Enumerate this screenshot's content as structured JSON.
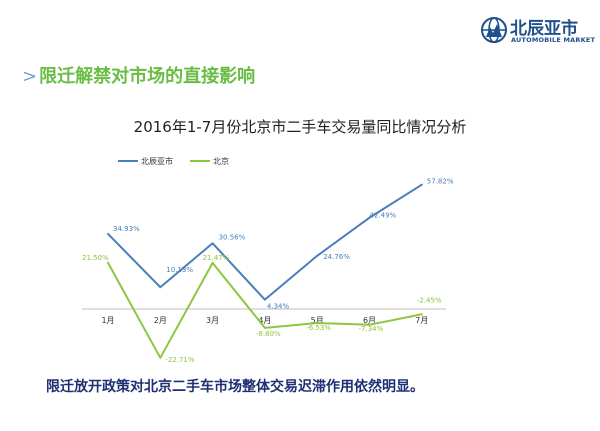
{
  "logo": {
    "name": "北辰亚市",
    "subtitle": "AUTOMOBILE MARKET"
  },
  "heading": {
    "marker": ">",
    "text": "限迁解禁对市场的直接影响"
  },
  "bottom_note": "限迁放开政策对北京二手车市场整体交易迟滞作用依然明显。",
  "colors": {
    "series_1": "#4a7ebb",
    "series_2": "#8dc641",
    "heading": "#69bd45",
    "note": "#1e2f73",
    "logo": "#1f4f8c"
  },
  "chart_data": {
    "type": "line",
    "title": "2016年1-7月份北京市二手车交易量同比情况分析",
    "categories": [
      "1月",
      "2月",
      "3月",
      "4月",
      "5月",
      "6月",
      "7月"
    ],
    "series": [
      {
        "name": "北辰亚市",
        "values": [
          34.93,
          10.13,
          30.56,
          4.34,
          24.76,
          42.49,
          57.82
        ],
        "labels": [
          "34.93%",
          "10.13%",
          "30.56%",
          "4.34%",
          "24.76%",
          "42.49%",
          "57.82%"
        ]
      },
      {
        "name": "北京",
        "values": [
          21.5,
          -22.71,
          21.47,
          -8.8,
          -6.53,
          -7.34,
          -2.45
        ],
        "labels": [
          "21.50%",
          "-22.71%",
          "21.47%",
          "-8.80%",
          "-6.53%",
          "-7.34%",
          "-2.45%"
        ]
      }
    ],
    "ylim": [
      -30,
      60
    ],
    "legend": "top-left",
    "grid": false
  }
}
